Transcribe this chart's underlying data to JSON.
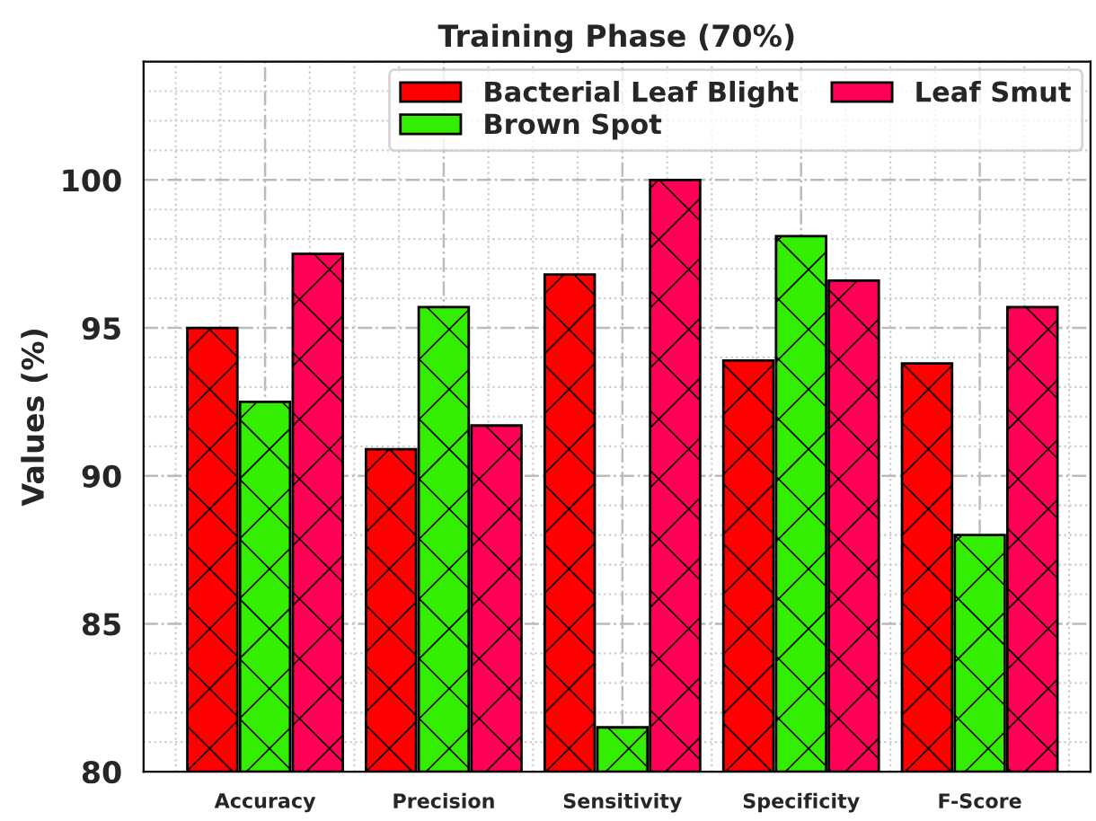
{
  "chart_data": {
    "type": "bar",
    "title": "Training Phase (70%)",
    "ylabel": "Values (%)",
    "categories": [
      "Accuracy",
      "Precision",
      "Sensitivity",
      "Specificity",
      "F-Score"
    ],
    "series": [
      {
        "name": "Bacterial Leaf Blight",
        "color": "#ff0000",
        "values": [
          95.0,
          90.9,
          96.8,
          93.9,
          93.8
        ]
      },
      {
        "name": "Brown Spot",
        "color": "#33ee00",
        "values": [
          92.5,
          95.7,
          81.5,
          98.1,
          88.0
        ]
      },
      {
        "name": "Leaf Smut",
        "color": "#ff0055",
        "values": [
          97.5,
          91.7,
          100.0,
          96.6,
          95.7
        ]
      }
    ],
    "ylim": [
      80,
      104
    ],
    "yticks": [
      80,
      85,
      90,
      95,
      100
    ],
    "grid": true,
    "legend": "top right"
  }
}
